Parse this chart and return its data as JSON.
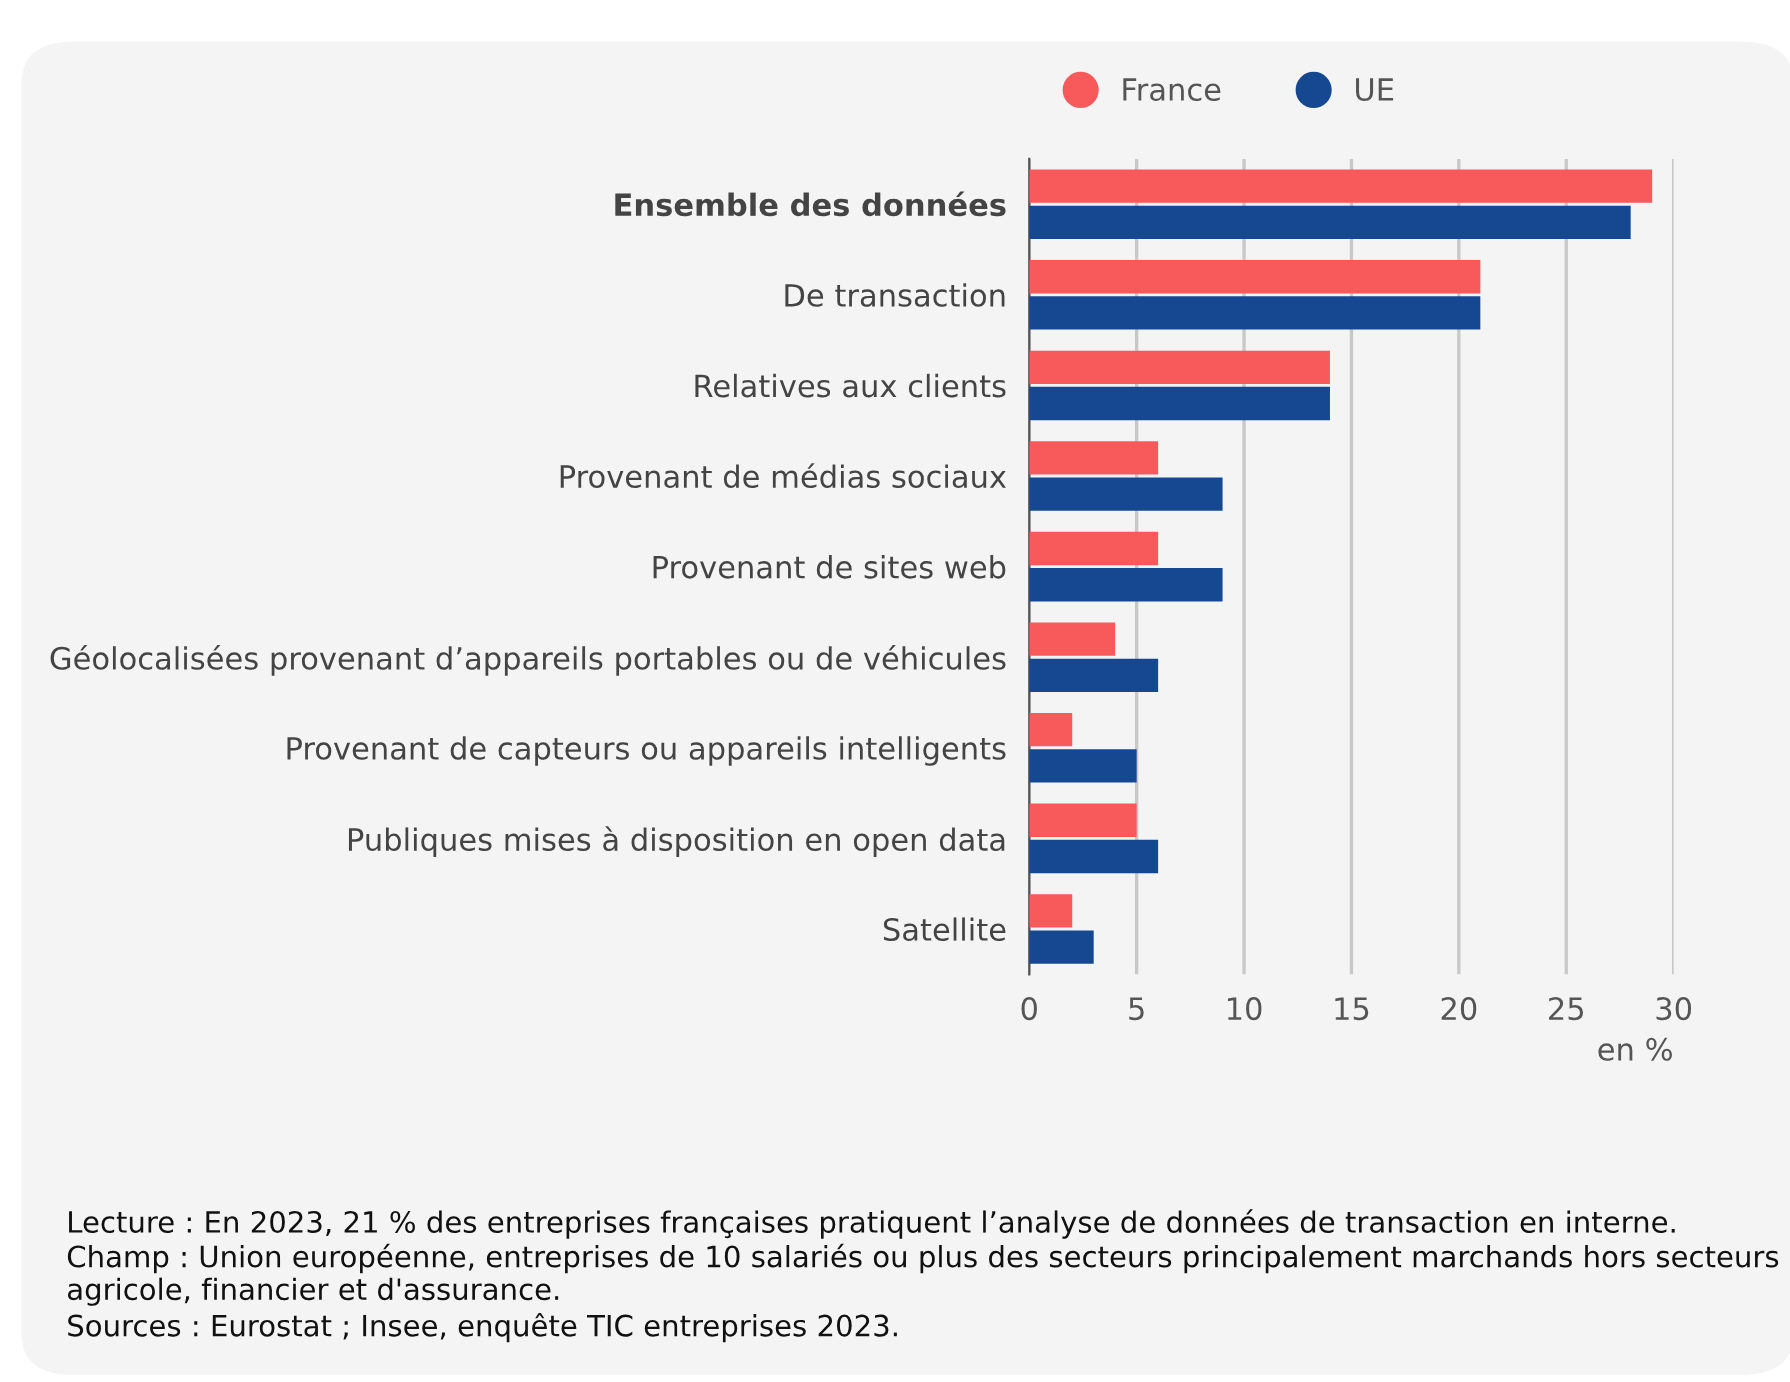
{
  "chart_data": {
    "type": "bar",
    "orientation": "horizontal",
    "categories": [
      "Ensemble des données",
      "De transaction",
      "Relatives aux clients",
      "Provenant de médias sociaux",
      "Provenant de sites web",
      "Géolocalisées provenant d’appareils portables ou de véhicules",
      "Provenant de capteurs ou appareils intelligents",
      "Publiques mises à disposition en open data",
      "Satellite"
    ],
    "series": [
      {
        "name": "France",
        "color": "#f85a5c",
        "values": [
          29,
          21,
          14,
          6,
          6,
          4,
          2,
          5,
          2
        ]
      },
      {
        "name": "UE",
        "color": "#164891",
        "values": [
          28,
          21,
          14,
          9,
          9,
          6,
          5,
          6,
          3
        ]
      }
    ],
    "xlabel": "en %",
    "xlim": [
      0,
      30
    ],
    "xticks": [
      0,
      5,
      10,
      15,
      20,
      25,
      30
    ],
    "grid": "x",
    "legend": "top",
    "annotations": [
      "Lecture : En 2023, 21 % des entreprises françaises pratiquent l’analyse de données de transaction en interne.",
      "Champ : Union européenne, entreprises de 10 salariés ou plus des secteurs principalement marchands hors secteurs agricole, financier et d'assurance.",
      "Sources : Eurostat ; Insee, enquête TIC entreprises 2023."
    ]
  }
}
